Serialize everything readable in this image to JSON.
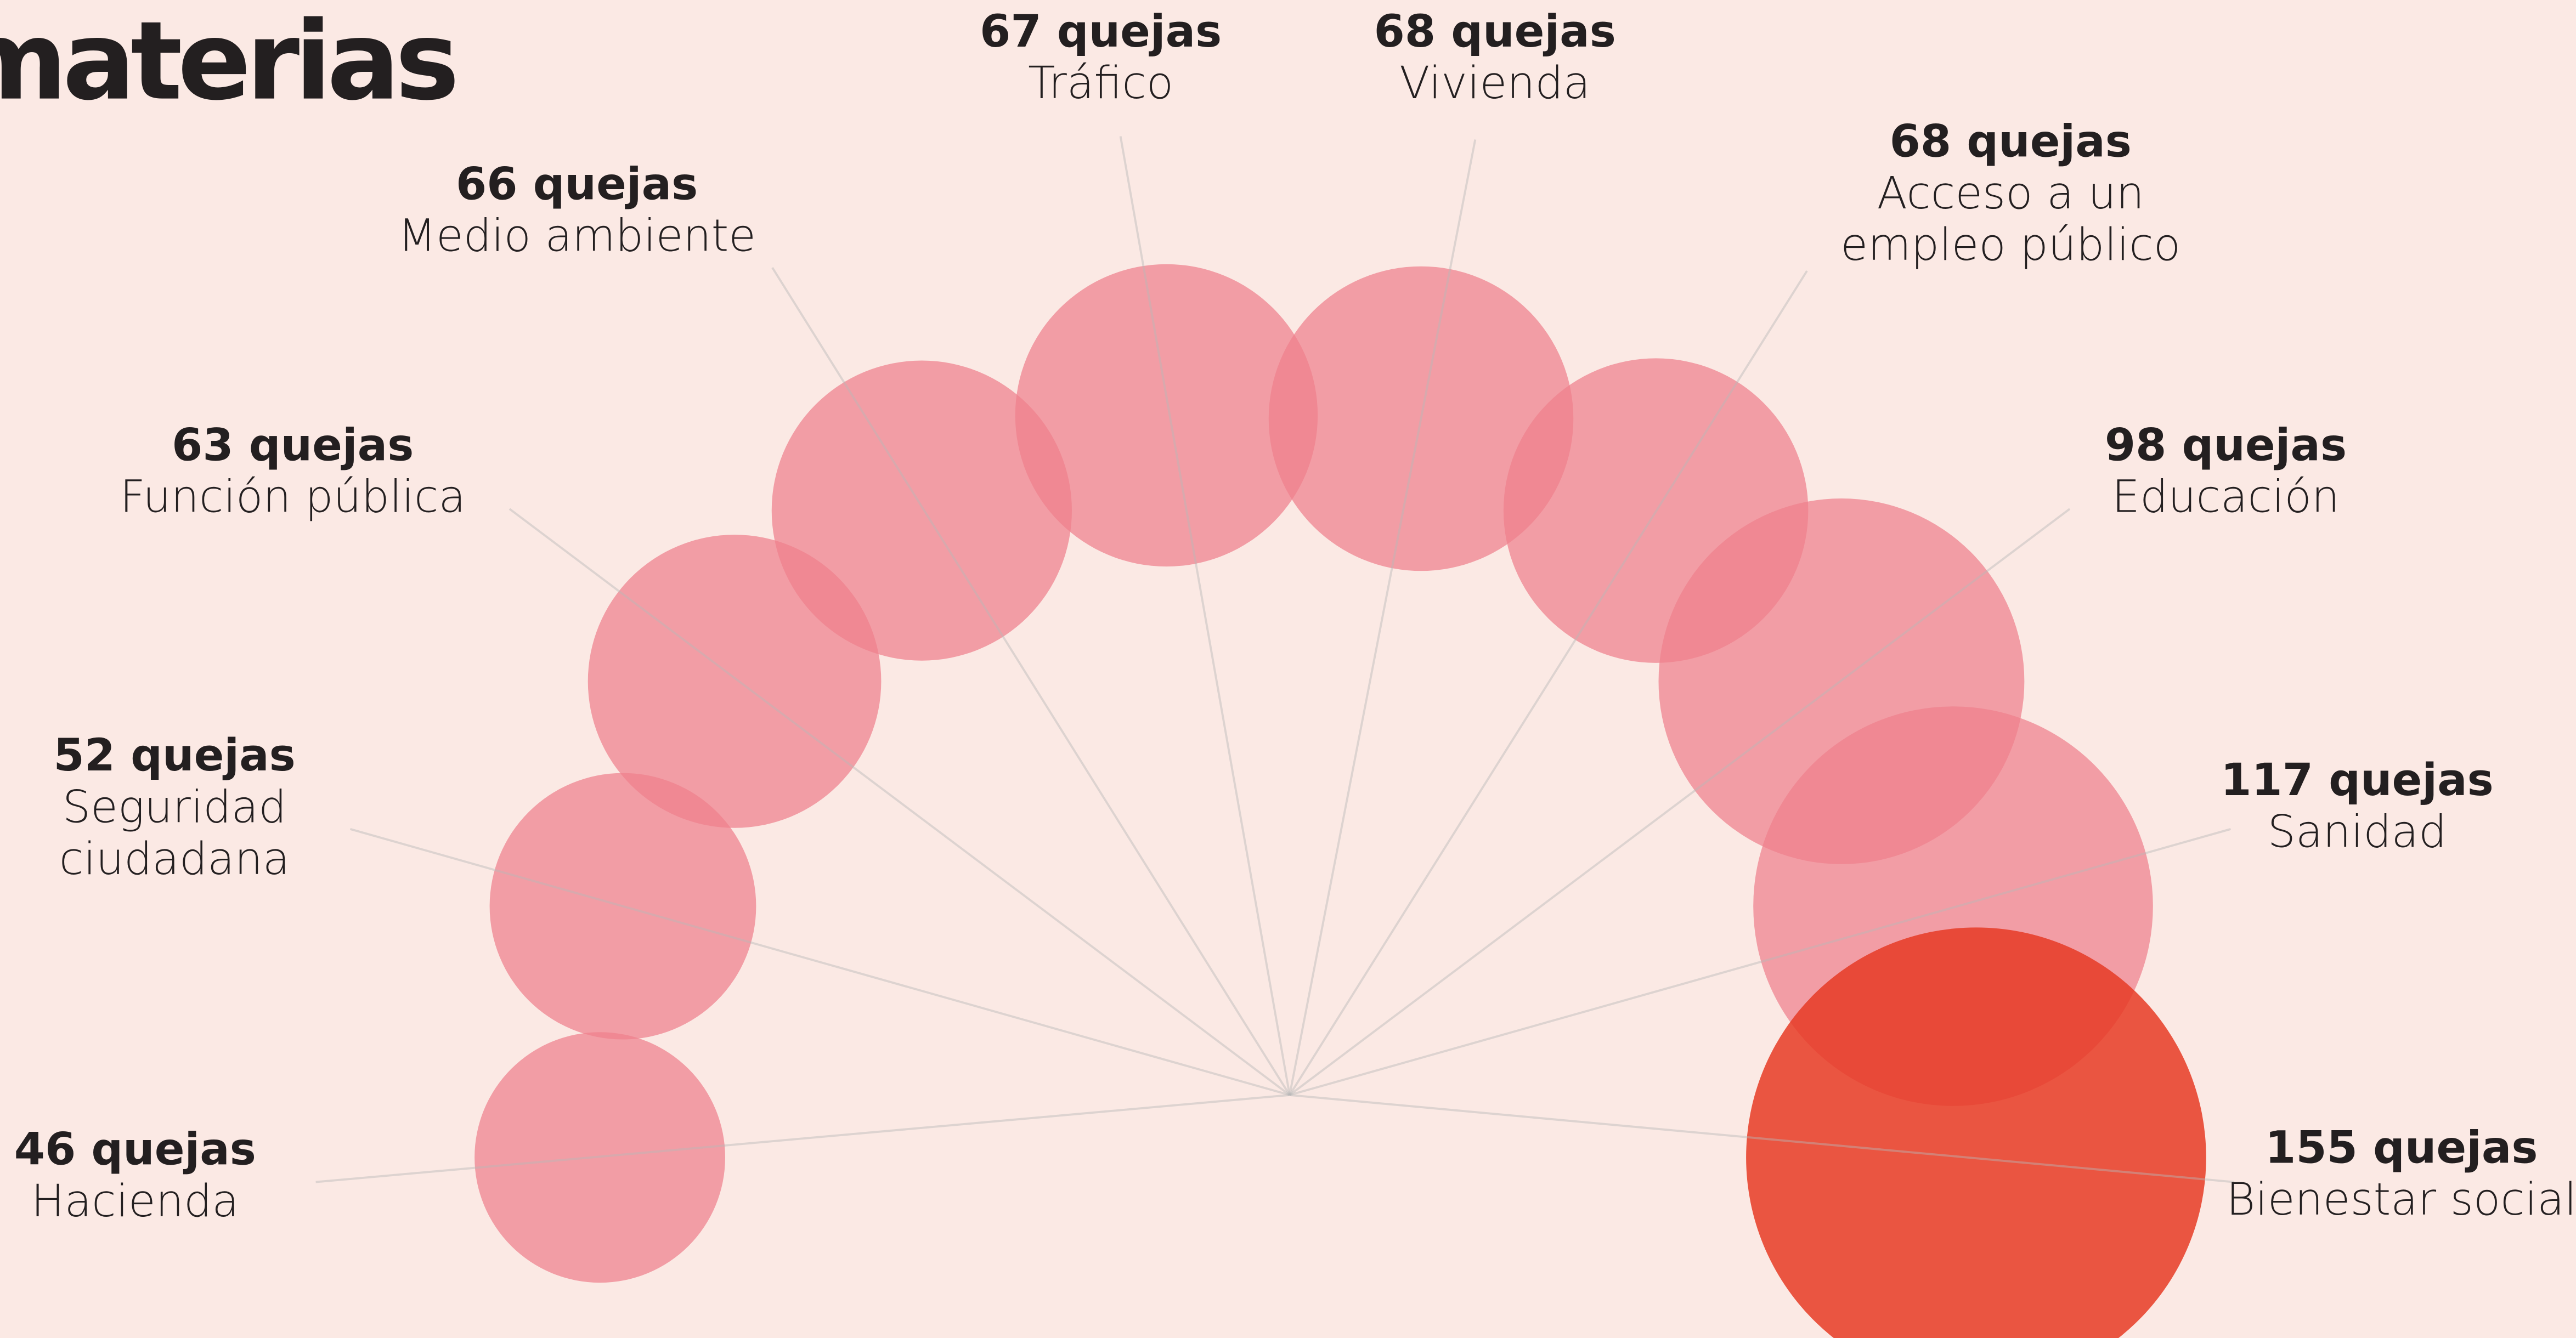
{
  "chart_data": {
    "type": "bubble-arc",
    "title": "materias",
    "categories": [
      [
        "Hacienda"
      ],
      [
        "Seguridad",
        "ciudadana"
      ],
      [
        "Función pública"
      ],
      [
        "Medio ambiente"
      ],
      [
        "Tráfico"
      ],
      [
        "Vivienda"
      ],
      [
        "Acceso a un",
        "empleo público"
      ],
      [
        "Educación"
      ],
      [
        "Sanidad"
      ],
      [
        "Bienestar social"
      ]
    ],
    "values": [
      46,
      52,
      63,
      66,
      67,
      68,
      68,
      98,
      117,
      155
    ],
    "value_labels": [
      "46 quejas",
      "52 quejas",
      "63 quejas",
      "66 quejas",
      "67 quejas",
      "68 quejas",
      "68 quejas",
      "98 quejas",
      "117 quejas",
      "155 quejas"
    ],
    "colors": [
      "#ef7f8c",
      "#ef7f8c",
      "#ef7f8c",
      "#ef7f8c",
      "#ef7f8c",
      "#ef7f8c",
      "#ef7f8c",
      "#ef7f8c",
      "#ef7f8c",
      "#e63b24"
    ]
  }
}
